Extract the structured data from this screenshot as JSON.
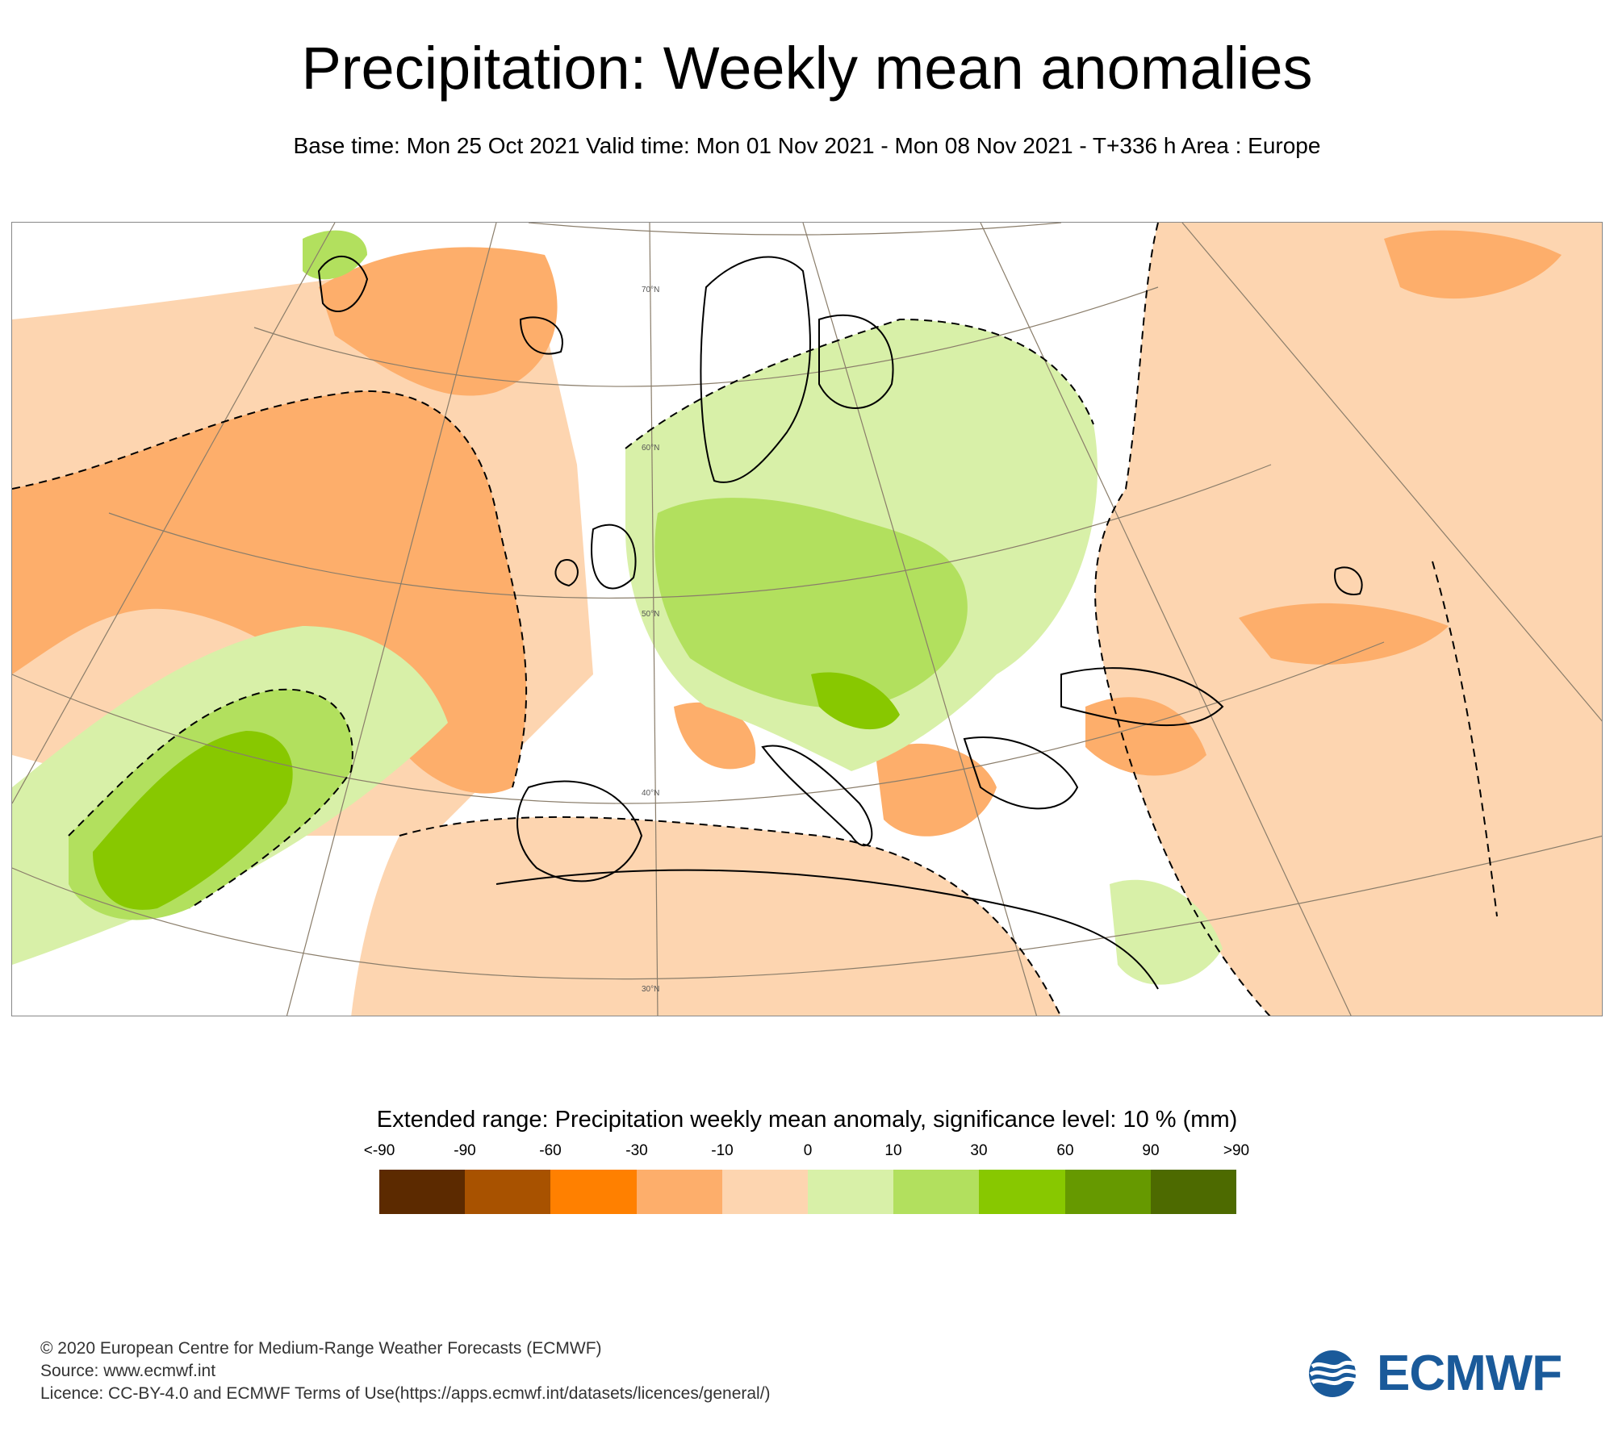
{
  "title": "Precipitation: Weekly mean anomalies",
  "subtitle": "Base time: Mon 25 Oct 2021 Valid time: Mon 01 Nov 2021 - Mon 08 Nov 2021 - T+336 h Area : Europe",
  "map": {
    "latitude_labels": [
      "70°N",
      "60°N",
      "50°N",
      "40°N",
      "30°N"
    ]
  },
  "legend": {
    "title": "Extended range: Precipitation weekly mean anomaly, significance level: 10 % (mm)",
    "ticks": [
      "<-90",
      "-90",
      "-60",
      "-30",
      "-10",
      "0",
      "10",
      "30",
      "60",
      "90",
      ">90"
    ],
    "colors": [
      "#5c2a00",
      "#a85200",
      "#ff8000",
      "#fdae6b",
      "#fdd5b0",
      "#d8f0a8",
      "#b2e05e",
      "#88c800",
      "#669900",
      "#4d6a00"
    ]
  },
  "footer": {
    "line1": "© 2020 European Centre for Medium-Range Weather Forecasts (ECMWF)",
    "line2": "Source: www.ecmwf.int",
    "line3": "Licence: CC-BY-4.0 and ECMWF Terms of Use(https://apps.ecmwf.int/datasets/licences/general/)"
  },
  "logo": {
    "text": "ECMWF",
    "color": "#1a5a9a"
  }
}
